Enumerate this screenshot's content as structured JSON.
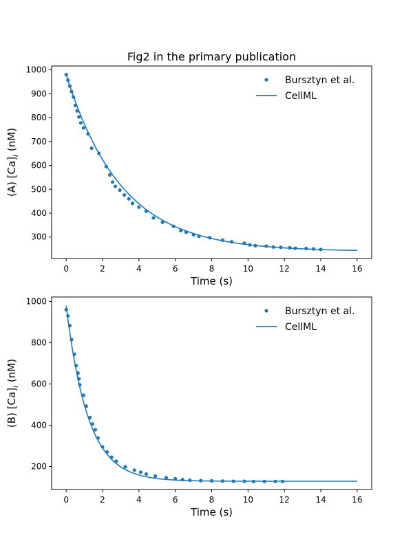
{
  "figure": {
    "title": "Fig2 in the primary publication"
  },
  "chart_data": [
    {
      "type": "line",
      "panel": "A",
      "title": "Fig2 in the primary publication",
      "xlabel": "Time (s)",
      "ylabel_prefix": "(A) [Ca]",
      "ylabel_sub": "i",
      "ylabel_suffix": " (nM)",
      "xlim": [
        -0.8,
        16.8
      ],
      "ylim": [
        210,
        1016
      ],
      "xticks": [
        0,
        2,
        4,
        6,
        8,
        10,
        12,
        14,
        16
      ],
      "yticks": [
        300,
        400,
        500,
        600,
        700,
        800,
        900,
        1000
      ],
      "legend_position": "top-right",
      "legend": [
        "Bursztyn et al.",
        "CellML"
      ],
      "color": "#1f77b4",
      "series": [
        {
          "name": "Bursztyn et al.",
          "style": "markers",
          "x": [
            0.0,
            0.1,
            0.2,
            0.3,
            0.4,
            0.5,
            0.6,
            0.7,
            0.8,
            0.95,
            1.2,
            1.4,
            1.8,
            2.2,
            2.4,
            2.55,
            2.7,
            2.95,
            3.2,
            3.45,
            3.65,
            4.0,
            4.4,
            4.8,
            5.3,
            5.9,
            6.3,
            6.6,
            7.0,
            7.3,
            7.9,
            8.6,
            9.1,
            9.8,
            10.1,
            10.4,
            11.0,
            11.4,
            11.8,
            12.3,
            12.6,
            13.2,
            13.6,
            14.0
          ],
          "y": [
            980,
            957,
            932,
            909,
            886,
            851,
            828,
            803,
            778,
            757,
            732,
            672,
            650,
            595,
            560,
            530,
            512,
            496,
            476,
            460,
            441,
            425,
            408,
            380,
            362,
            345,
            327,
            320,
            310,
            303,
            297,
            287,
            280,
            274,
            267,
            264,
            262,
            258,
            257,
            255,
            253,
            252,
            250,
            248
          ]
        },
        {
          "name": "CellML",
          "style": "line",
          "model": "exp_decay",
          "y_inf": 240,
          "y_0": 980,
          "tau": 3.05,
          "x_range": [
            0,
            16
          ]
        }
      ]
    },
    {
      "type": "line",
      "panel": "B",
      "xlabel": "Time (s)",
      "ylabel_prefix": "(B) [Ca]",
      "ylabel_sub": "i",
      "ylabel_suffix": " (nM)",
      "xlim": [
        -0.8,
        16.8
      ],
      "ylim": [
        88,
        1022
      ],
      "xticks": [
        0,
        2,
        4,
        6,
        8,
        10,
        12,
        14,
        16
      ],
      "yticks": [
        200,
        400,
        600,
        800,
        1000
      ],
      "legend_position": "top-right",
      "legend": [
        "Bursztyn et al.",
        "CellML"
      ],
      "color": "#1f77b4",
      "series": [
        {
          "name": "Bursztyn et al.",
          "style": "markers",
          "x": [
            0.0,
            0.1,
            0.2,
            0.3,
            0.45,
            0.55,
            0.65,
            0.7,
            0.75,
            0.95,
            1.1,
            1.3,
            1.45,
            1.6,
            1.75,
            2.0,
            2.25,
            2.5,
            2.75,
            3.25,
            3.75,
            4.1,
            4.4,
            4.9,
            5.5,
            6.0,
            6.4,
            6.8,
            7.4,
            8.0,
            8.6,
            9.2,
            9.8,
            10.3,
            10.9,
            11.5,
            11.9
          ],
          "y": [
            960,
            930,
            883,
            815,
            744,
            689,
            653,
            625,
            596,
            545,
            492,
            437,
            406,
            378,
            338,
            295,
            270,
            245,
            225,
            198,
            182,
            172,
            163,
            153,
            145,
            140,
            136,
            133,
            131,
            130,
            129,
            128,
            128,
            127,
            127,
            127,
            127
          ]
        },
        {
          "name": "CellML",
          "style": "line",
          "model": "exp_decay",
          "y_inf": 128,
          "y_0": 980,
          "tau": 1.2,
          "x_range": [
            0,
            16
          ]
        }
      ]
    }
  ]
}
